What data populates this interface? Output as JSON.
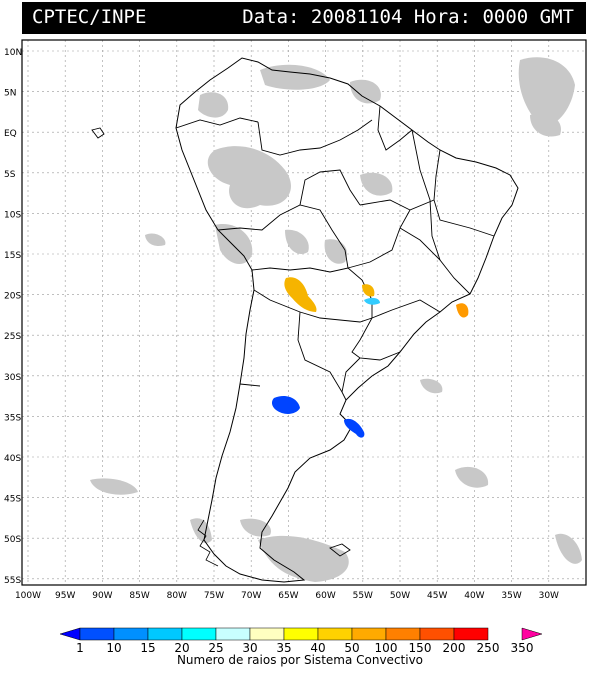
{
  "header": {
    "org": "CPTEC/INPE",
    "date_time": "Data: 20081104 Hora: 0000 GMT"
  },
  "map": {
    "lat_labels": [
      "10N",
      "5N",
      "EQ",
      "5S",
      "10S",
      "15S",
      "20S",
      "25S",
      "30S",
      "35S",
      "40S",
      "45S",
      "50S",
      "55S"
    ],
    "lon_labels": [
      "100W",
      "95W",
      "90W",
      "85W",
      "80W",
      "75W",
      "70W",
      "65W",
      "60W",
      "55W",
      "50W",
      "45W",
      "40W",
      "35W",
      "30W"
    ],
    "grid": true,
    "land_color": "#ffffff",
    "cloud_color": "#c8c8c8",
    "convective_systems": [
      {
        "name": "paraguay-chaco",
        "category": "50",
        "color": "#f6b400"
      },
      {
        "name": "mato-grosso-sul",
        "category": "50",
        "color": "#f6b400"
      },
      {
        "name": "parana-small",
        "category": "25",
        "color": "#33ccff"
      },
      {
        "name": "rio-de-janeiro",
        "category": "100",
        "color": "#ff9a00"
      },
      {
        "name": "buenos-aires-interior",
        "category": "10",
        "color": "#0044ff"
      },
      {
        "name": "rio-de-la-plata",
        "category": "10",
        "color": "#0044ff"
      }
    ]
  },
  "legend": {
    "labels": [
      "1",
      "10",
      "15",
      "20",
      "25",
      "30",
      "35",
      "40",
      "50",
      "100",
      "150",
      "200",
      "250",
      "350"
    ],
    "colors": [
      "#0000ff",
      "#0050ff",
      "#0090ff",
      "#00c8ff",
      "#00ffff",
      "#c8ffff",
      "#ffffc0",
      "#ffff00",
      "#ffd200",
      "#ffaa00",
      "#ff8000",
      "#ff5000",
      "#ff0000",
      "#ff00a0"
    ],
    "caption": "Numero de raios por Sistema Convectivo"
  }
}
